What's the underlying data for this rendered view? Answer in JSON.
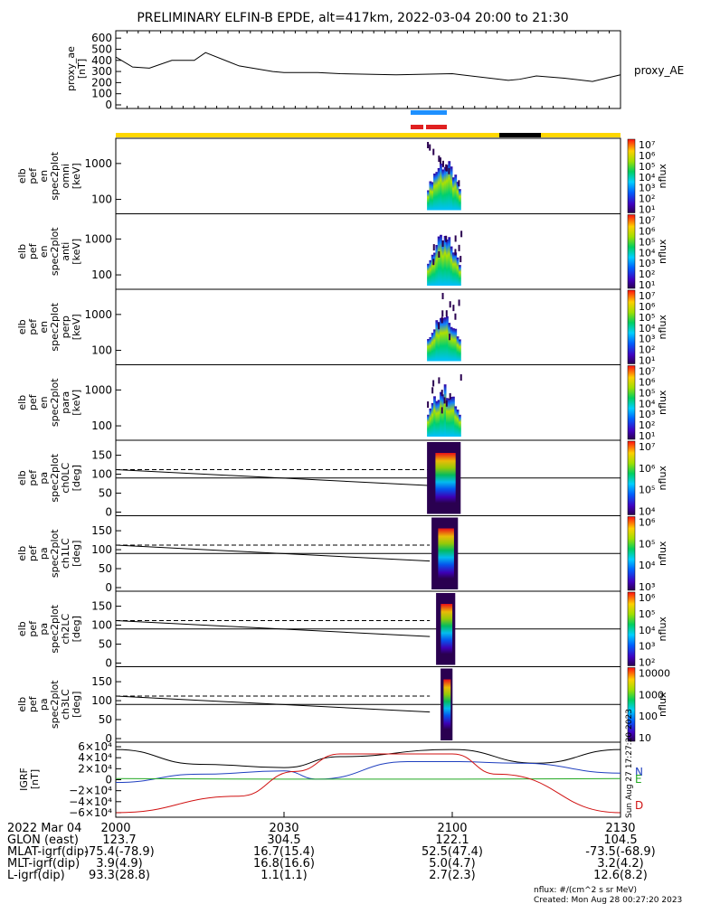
{
  "title": "PRELIMINARY ELFIN-B EPDE, alt=417km, 2022-03-04 20:00 to 21:30",
  "proxy_panel": {
    "ylabel": [
      "proxy_ae",
      "[nT]"
    ],
    "legend": "proxy_AE",
    "yticks": [
      "600",
      "500",
      "400",
      "300",
      "200",
      "100",
      "0"
    ]
  },
  "energy_panels": [
    {
      "ylabel": [
        "elb",
        "pef",
        "en",
        "spec2plot",
        "omni",
        "[keV]"
      ],
      "yticks": [
        "1000",
        "100"
      ]
    },
    {
      "ylabel": [
        "elb",
        "pef",
        "en",
        "spec2plot",
        "anti",
        "[keV]"
      ],
      "yticks": [
        "1000",
        "100"
      ]
    },
    {
      "ylabel": [
        "elb",
        "pef",
        "en",
        "spec2plot",
        "perp",
        "[keV]"
      ],
      "yticks": [
        "1000",
        "100"
      ]
    },
    {
      "ylabel": [
        "elb",
        "pef",
        "en",
        "spec2plot",
        "para",
        "[keV]"
      ],
      "yticks": [
        "1000",
        "100"
      ]
    }
  ],
  "pa_panels": [
    {
      "ylabel": [
        "elb",
        "pef",
        "pa",
        "spec2plot",
        "ch0LC",
        "[deg]"
      ],
      "yticks": [
        "150",
        "100",
        "50",
        "0"
      ]
    },
    {
      "ylabel": [
        "elb",
        "pef",
        "pa",
        "spec2plot",
        "ch1LC",
        "[deg]"
      ],
      "yticks": [
        "150",
        "100",
        "50",
        "0"
      ]
    },
    {
      "ylabel": [
        "elb",
        "pef",
        "pa",
        "spec2plot",
        "ch2LC",
        "[deg]"
      ],
      "yticks": [
        "150",
        "100",
        "50",
        "0"
      ]
    },
    {
      "ylabel": [
        "elb",
        "pef",
        "pa",
        "spec2plot",
        "ch3LC",
        "[deg]"
      ],
      "yticks": [
        "150",
        "100",
        "50",
        "0"
      ]
    }
  ],
  "colorbar_label": "nflux",
  "colorbars": [
    {
      "ticks": [
        "10⁷",
        "10⁶",
        "10⁵",
        "10⁴",
        "10³",
        "10²",
        "10¹"
      ]
    },
    {
      "ticks": [
        "10⁷",
        "10⁶",
        "10⁵",
        "10⁴",
        "10³",
        "10²",
        "10¹"
      ]
    },
    {
      "ticks": [
        "10⁷",
        "10⁶",
        "10⁵",
        "10⁴",
        "10³",
        "10²",
        "10¹"
      ]
    },
    {
      "ticks": [
        "10⁷",
        "10⁶",
        "10⁵",
        "10⁴",
        "10³",
        "10²",
        "10¹"
      ]
    },
    {
      "ticks": [
        "10⁷",
        "10⁶",
        "10⁵",
        "10⁴"
      ]
    },
    {
      "ticks": [
        "10⁶",
        "10⁵",
        "10⁴",
        "10³"
      ]
    },
    {
      "ticks": [
        "10⁶",
        "10⁵",
        "10⁴",
        "10³",
        "10²"
      ]
    },
    {
      "ticks": [
        "10000",
        "1000",
        "100",
        "10"
      ]
    }
  ],
  "igrf_panel": {
    "ylabel": [
      "IGRF",
      "[nT]"
    ],
    "yticks": [
      "6×10⁴",
      "4×10⁴",
      "2×10⁴",
      "0",
      "−2×10⁴",
      "−4×10⁴",
      "−6×10⁴"
    ],
    "components": [
      {
        "label": "N",
        "color": "#1f3fbf"
      },
      {
        "label": "E",
        "color": "#22a822"
      },
      {
        "label": "D",
        "color": "#d01010"
      }
    ],
    "side_note": "Sun Aug 27 17:27:20 2023"
  },
  "time_axis": {
    "ticks": [
      "2000",
      "2030",
      "2100",
      "2130"
    ],
    "date": "2022 Mar 04"
  },
  "ephemeris": [
    {
      "label": "GLON (east)",
      "values": [
        "123.7",
        "304.5",
        "122.1",
        "104.5"
      ]
    },
    {
      "label": "MLAT-igrf(dip)",
      "values": [
        "-75.4(-78.9)",
        "16.7(15.4)",
        "52.5(47.4)",
        "-73.5(-68.9)"
      ]
    },
    {
      "label": "MLT-igrf(dip)",
      "values": [
        "3.9(4.9)",
        "16.8(16.6)",
        "5.0(4.7)",
        "3.2(4.2)"
      ]
    },
    {
      "label": "L-igrf(dip)",
      "values": [
        "93.3(28.8)",
        "1.1(1.1)",
        "2.7(2.3)",
        "12.6(8.2)"
      ]
    }
  ],
  "footer": {
    "units": "nflux: #/(cm^2 s sr MeV)",
    "created": "Created: Mon Aug 28 00:27:20 2023"
  },
  "colors": {
    "sunlit_bar": "#ffd700",
    "eclipse_bar": "#000000",
    "science_zone_blue": "#1e90ff",
    "science_zone_red": "#e02020"
  },
  "chart_data": {
    "type": "line",
    "time_range_minutes": [
      0,
      90
    ],
    "proxy_ae": {
      "ylim": [
        0,
        650
      ],
      "t": [
        0,
        3,
        6,
        10,
        14,
        16,
        22,
        28,
        30,
        36,
        40,
        50,
        60,
        70,
        72,
        75,
        80,
        85,
        90
      ],
      "values": [
        430,
        340,
        330,
        400,
        400,
        470,
        350,
        300,
        290,
        290,
        280,
        270,
        280,
        220,
        230,
        260,
        240,
        210,
        270
      ]
    },
    "pa_loss_cone": {
      "t": [
        0,
        56
      ],
      "loss_cone_deg": [
        112,
        70
      ],
      "anti_loss_cone_deg": [
        112,
        112
      ],
      "perpendicular_deg": 90
    },
    "igrf": {
      "ylim": [
        -65000,
        65000
      ],
      "series": [
        {
          "name": "N",
          "t": [
            0,
            15,
            30,
            36,
            52,
            60,
            72,
            90
          ],
          "values": [
            -5000,
            10000,
            16000,
            1000,
            33000,
            33000,
            30000,
            12000
          ]
        },
        {
          "name": "E",
          "t": [
            0,
            30,
            60,
            90
          ],
          "values": [
            2000,
            1000,
            1000,
            2000
          ]
        },
        {
          "name": "D",
          "t": [
            0,
            22,
            32,
            40,
            60,
            68,
            90
          ],
          "values": [
            -60000,
            -30000,
            15000,
            47000,
            47000,
            10000,
            -60000
          ]
        }
      ],
      "total_t": [
        0,
        15,
        30,
        40,
        60,
        75,
        90
      ],
      "total": [
        55000,
        28000,
        22000,
        42000,
        55000,
        30000,
        55000
      ]
    },
    "activity_window_minutes": [
      55.5,
      61.5
    ]
  }
}
